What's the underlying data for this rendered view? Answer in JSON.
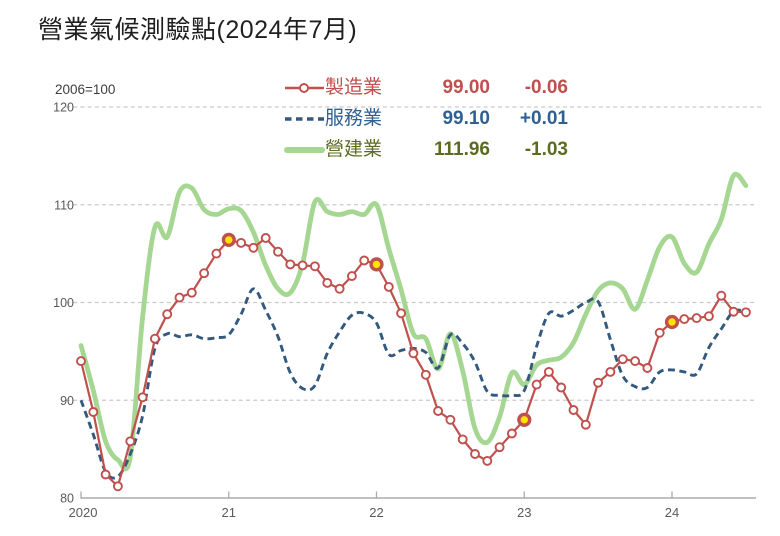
{
  "title": "營業氣候測驗點(2024年7月)",
  "axis_note": "2006=100",
  "palette": {
    "grid": "#cacaca",
    "axis": "#ababab",
    "tick_label": "#595959",
    "title_text": "#1f1f1f",
    "highlight_marker_fill": "#ffe400"
  },
  "chart_data": {
    "type": "line",
    "title": "營業氣候測驗點(2024年7月)",
    "unit_note": "2006=100",
    "grid": "horizontal-dashed",
    "legend_position": "top-center",
    "ylim": [
      80,
      120
    ],
    "y_ticks": [
      80,
      90,
      100,
      110,
      120
    ],
    "x_tick_labels": [
      "2020",
      "21",
      "22",
      "23",
      "24"
    ],
    "x_months": [
      "2020-01",
      "2020-02",
      "2020-03",
      "2020-04",
      "2020-05",
      "2020-06",
      "2020-07",
      "2020-08",
      "2020-09",
      "2020-10",
      "2020-11",
      "2020-12",
      "2021-01",
      "2021-02",
      "2021-03",
      "2021-04",
      "2021-05",
      "2021-06",
      "2021-07",
      "2021-08",
      "2021-09",
      "2021-10",
      "2021-11",
      "2021-12",
      "2022-01",
      "2022-02",
      "2022-03",
      "2022-04",
      "2022-05",
      "2022-06",
      "2022-07",
      "2022-08",
      "2022-09",
      "2022-10",
      "2022-11",
      "2022-12",
      "2023-01",
      "2023-02",
      "2023-03",
      "2023-04",
      "2023-05",
      "2023-06",
      "2023-07",
      "2023-08",
      "2023-09",
      "2023-10",
      "2023-11",
      "2023-12",
      "2024-01",
      "2024-02",
      "2024-03",
      "2024-04",
      "2024-05",
      "2024-06",
      "2024-07"
    ],
    "series": [
      {
        "name": "製造業",
        "latest_value": "99.00",
        "change": "-0.06",
        "style": "solid-line-open-circle-markers",
        "color": "#c0504d",
        "text_color": "#c0504d",
        "highlight_indices": [
          12,
          24,
          36,
          48
        ],
        "highlight_marker": "yellow-filled-circle-at-january",
        "values": [
          94,
          88.8,
          82.4,
          81.2,
          85.8,
          90.3,
          96.3,
          98.8,
          100.5,
          101,
          103,
          105,
          106.4,
          106.1,
          105.6,
          106.6,
          105.2,
          103.9,
          103.8,
          103.7,
          102,
          101.4,
          102.7,
          104.3,
          103.9,
          101.6,
          98.9,
          94.8,
          92.6,
          88.9,
          88,
          86,
          84.5,
          83.8,
          85.2,
          86.6,
          88,
          91.6,
          92.9,
          91.3,
          89,
          87.5,
          91.8,
          92.9,
          94.2,
          94,
          93.3,
          96.9,
          98,
          98.3,
          98.4,
          98.6,
          100.7,
          99.06,
          99
        ]
      },
      {
        "name": "服務業",
        "latest_value": "99.10",
        "change": "+0.01",
        "style": "dashed-line",
        "color": "#34597e",
        "text_color": "#2f6093",
        "values": [
          90,
          86.5,
          82.7,
          82.2,
          84.5,
          88.4,
          95.3,
          96.8,
          96.5,
          96.7,
          96.3,
          96.4,
          96.7,
          98.8,
          101.4,
          99.2,
          96.5,
          92.8,
          91.2,
          91.5,
          94.8,
          97,
          98.7,
          98.9,
          97.9,
          94.7,
          95.1,
          95.3,
          94.9,
          93.3,
          96.7,
          95.8,
          93.9,
          90.9,
          90.5,
          90.5,
          91,
          95.5,
          98.9,
          98.6,
          99.2,
          100,
          100.1,
          96.2,
          92.5,
          91.4,
          91.3,
          92.9,
          93.1,
          92.9,
          92.7,
          95.4,
          97.3,
          99.09,
          99.1
        ]
      },
      {
        "name": "營建業",
        "latest_value": "111.96",
        "change": "-1.03",
        "style": "thick-solid-line",
        "color": "#a6d792",
        "text_color": "#5b6c1e",
        "values": [
          95.6,
          91,
          85.8,
          83.9,
          84.2,
          98.5,
          107.7,
          106.7,
          111.3,
          111.7,
          109.5,
          109,
          109.6,
          109.4,
          107.2,
          103.8,
          101.4,
          101,
          104,
          110.3,
          109.3,
          109,
          109.3,
          109,
          110,
          105.5,
          101.3,
          96.8,
          96.3,
          93.2,
          96.8,
          93,
          87.1,
          85.7,
          88.3,
          92.8,
          91.6,
          93.6,
          94.1,
          94.4,
          95.9,
          98.8,
          101.2,
          102,
          101.4,
          99.3,
          102.3,
          105.7,
          106.7,
          104,
          103.1,
          106,
          108.5,
          112.99,
          111.96
        ]
      }
    ]
  }
}
